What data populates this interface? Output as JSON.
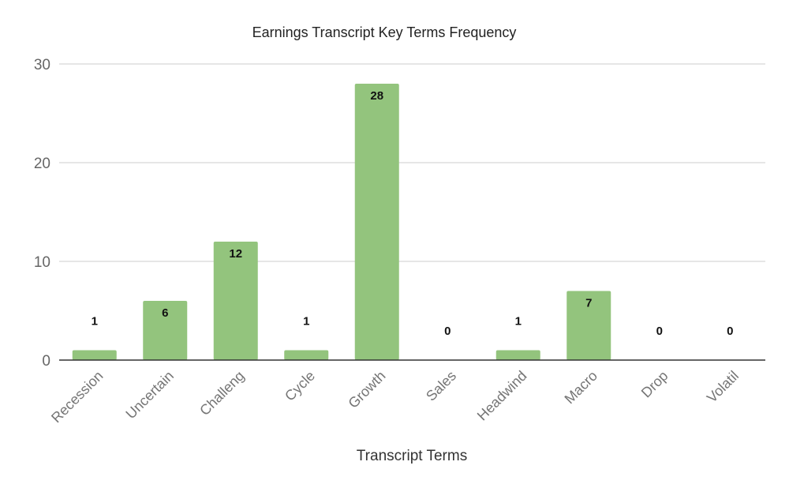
{
  "chart_data": {
    "type": "bar",
    "title": "Earnings Transcript Key Terms Frequency",
    "xlabel": "Transcript Terms",
    "ylabel": "",
    "categories": [
      "Recession",
      "Uncertain",
      "Challeng",
      "Cycle",
      "Growth",
      "Sales",
      "Headwind",
      "Macro",
      "Drop",
      "Volatil"
    ],
    "values": [
      1,
      6,
      12,
      1,
      28,
      0,
      1,
      7,
      0,
      0
    ],
    "ylim": [
      0,
      30
    ],
    "yticks": [
      0,
      10,
      20,
      30
    ],
    "grid": true,
    "legend": "none",
    "bar_color": "#93c47d",
    "gridline_color": "#cccccc",
    "axis_color": "#333333"
  }
}
